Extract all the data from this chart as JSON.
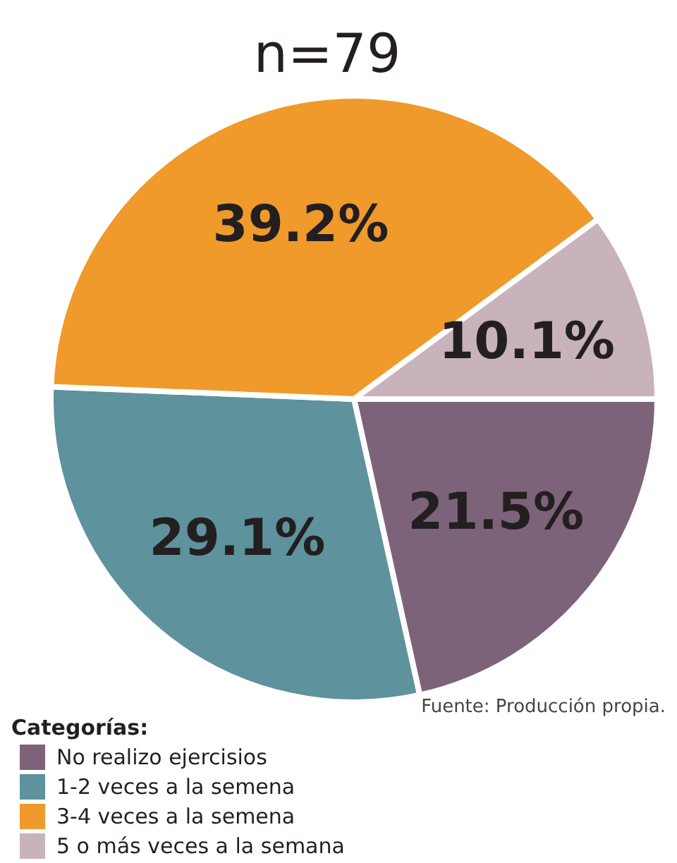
{
  "chart_data": {
    "type": "pie",
    "title": "n=79",
    "legend_title": "Categorías:",
    "categories": [
      "No realizo ejercisios",
      "1-2 veces a la semena",
      "3-4 veces a la semena",
      "5 o más veces a la semana"
    ],
    "values": [
      21.5,
      29.1,
      39.2,
      10.1
    ],
    "value_labels": [
      "21.5%",
      "29.1%",
      "39.2%",
      "10.1%"
    ],
    "colors": [
      "#7d6379",
      "#5e929c",
      "#ef9a2b",
      "#c8b2bc"
    ],
    "legend": "bottom left",
    "annotations": [
      "Fuente: Producción propia."
    ]
  }
}
